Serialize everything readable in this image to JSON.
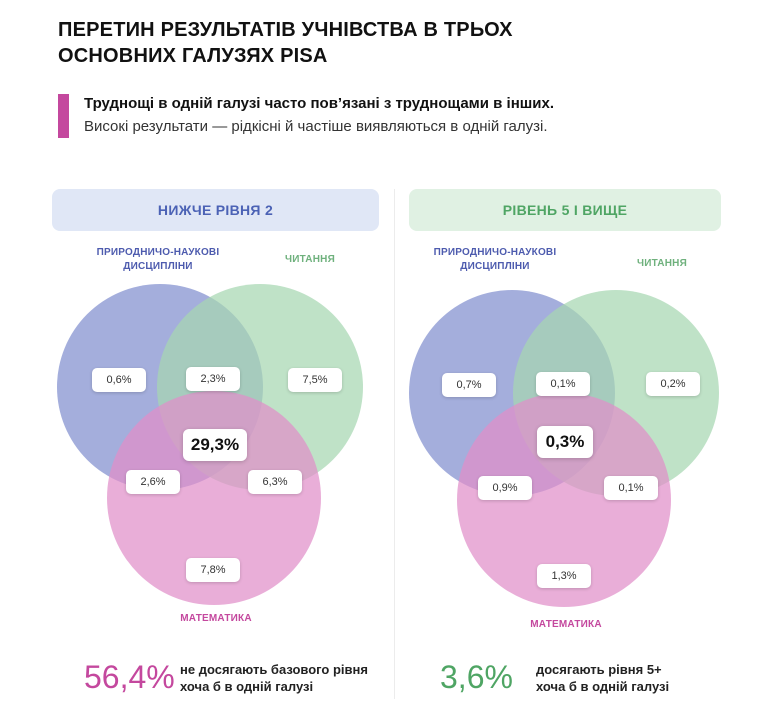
{
  "title_line1": "ПЕРЕТИН РЕЗУЛЬТАТІВ УЧНІВСТВА В ТРЬОХ",
  "title_line2": "ОСНОВНИХ ГАЛУЗЯХ PISA",
  "lead_bold": "Труднощі в одній галузі часто пов’язані з труднощами в інших.",
  "lead_regular": "Високі результати — рідкісні й частіше виявляються в одній галузі.",
  "colors": {
    "science": "#8a97d2",
    "reading": "#a6d7b1",
    "math": "#e08fc9",
    "accent_pink": "#c4489e",
    "accent_green": "#4fa564"
  },
  "left": {
    "header": "НИЖЧЕ РІВНЯ 2",
    "label_science_1": "ПРИРОДНИЧО-НАУКОВІ",
    "label_science_2": "ДИСЦИПЛІНИ",
    "label_reading": "ЧИТАННЯ",
    "label_math": "МАТЕМАТИКА",
    "science_only": "0,6%",
    "science_reading": "2,3%",
    "reading_only": "7,5%",
    "all_three": "29,3%",
    "science_math": "2,6%",
    "reading_math": "6,3%",
    "math_only": "7,8%",
    "stat_value": "56,4%",
    "stat_line1": "не досягають базового рівня",
    "stat_line2": "хоча б в одній галузі"
  },
  "right": {
    "header": "РІВЕНЬ 5 І ВИЩЕ",
    "label_science_1": "ПРИРОДНИЧО-НАУКОВІ",
    "label_science_2": "ДИСЦИПЛІНИ",
    "label_reading": "ЧИТАННЯ",
    "label_math": "МАТЕМАТИКА",
    "science_only": "0,7%",
    "science_reading": "0,1%",
    "reading_only": "0,2%",
    "all_three": "0,3%",
    "science_math": "0,9%",
    "reading_math": "0,1%",
    "math_only": "1,3%",
    "stat_value": "3,6%",
    "stat_line1": "досягають рівня 5+",
    "stat_line2": "хоча б в одній галузі"
  }
}
